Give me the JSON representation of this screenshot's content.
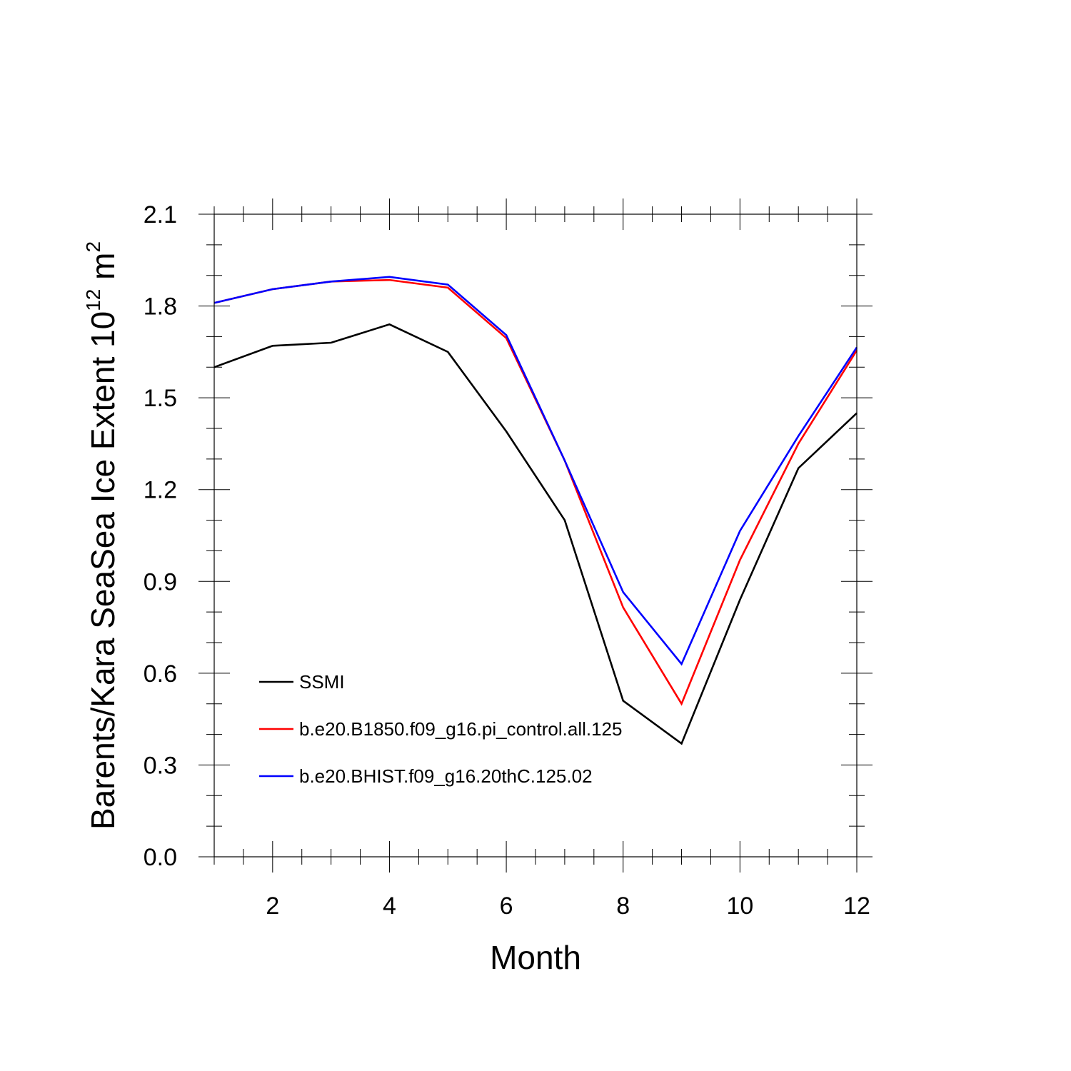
{
  "chart_data": {
    "type": "line",
    "title": "",
    "xlabel": "Month",
    "ylabel": "Barents/Kara SeaSea Ice Extent 10",
    "ylabel_exponent": "12",
    "ylabel_unit": " m",
    "ylabel_unit_exponent": "2",
    "xlim": [
      1,
      12
    ],
    "ylim": [
      0.0,
      2.1
    ],
    "x_ticks": [
      2,
      4,
      6,
      8,
      10,
      12
    ],
    "x_tick_labels": [
      "2",
      "4",
      "6",
      "8",
      "10",
      "12"
    ],
    "y_ticks": [
      0.0,
      0.3,
      0.6,
      0.9,
      1.2,
      1.5,
      1.8,
      2.1
    ],
    "y_tick_labels": [
      "0.0",
      "0.3",
      "0.6",
      "0.9",
      "1.2",
      "1.5",
      "1.8",
      "2.1"
    ],
    "grid": false,
    "legend_position": "inside-lower-left",
    "x": [
      1,
      2,
      3,
      4,
      5,
      6,
      7,
      8,
      9,
      10,
      11,
      12
    ],
    "series": [
      {
        "name": "SSMI",
        "color": "#000000",
        "values": [
          1.6,
          1.67,
          1.68,
          1.74,
          1.65,
          1.39,
          1.1,
          0.51,
          0.37,
          0.84,
          1.27,
          1.45
        ]
      },
      {
        "name": "b.e20.B1850.f09_g16.pi_control.all.125",
        "color": "#ff0000",
        "values": [
          1.81,
          1.855,
          1.88,
          1.885,
          1.86,
          1.695,
          1.295,
          0.815,
          0.5,
          0.97,
          1.35,
          1.655
        ]
      },
      {
        "name": "b.e20.BHIST.f09_g16.20thC.125.02",
        "color": "#0000ff",
        "values": [
          1.81,
          1.855,
          1.88,
          1.895,
          1.87,
          1.705,
          1.295,
          0.865,
          0.63,
          1.065,
          1.375,
          1.665
        ]
      }
    ]
  }
}
